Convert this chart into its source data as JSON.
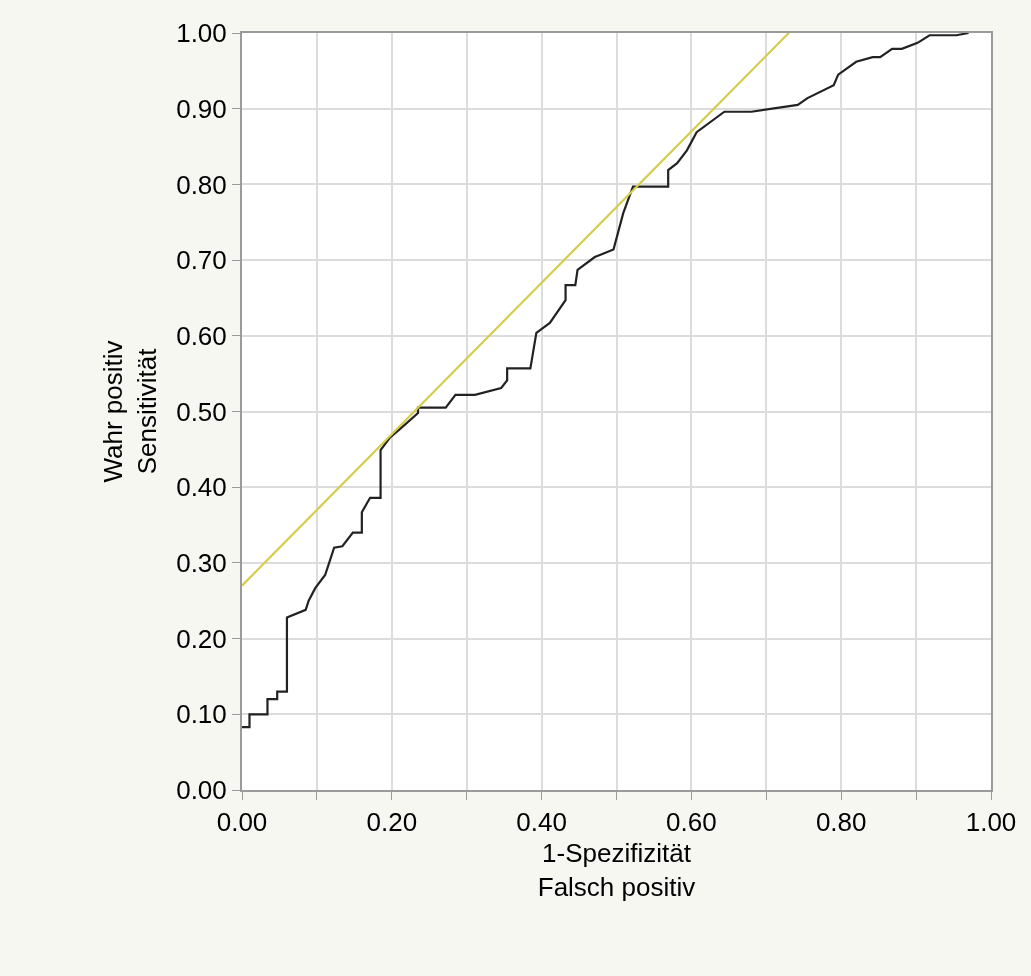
{
  "chart_data": {
    "type": "line",
    "xlabel": "1-Spezifizität\nFalsch positiv",
    "ylabel": "Wahr positiv\nSensitivität",
    "series": [
      {
        "color": "#222222",
        "x": [
          0.0,
          0.01,
          0.01,
          0.034,
          0.034,
          0.047,
          0.047,
          0.06,
          0.06,
          0.085,
          0.089,
          0.098,
          0.111,
          0.123,
          0.134,
          0.148,
          0.16,
          0.16,
          0.171,
          0.185,
          0.185,
          0.197,
          0.21,
          0.235,
          0.235,
          0.272,
          0.285,
          0.311,
          0.346,
          0.354,
          0.354,
          0.385,
          0.393,
          0.411,
          0.432,
          0.432,
          0.445,
          0.448,
          0.471,
          0.496,
          0.509,
          0.522,
          0.569,
          0.569,
          0.581,
          0.594,
          0.607,
          0.644,
          0.68,
          0.742,
          0.755,
          0.79,
          0.796,
          0.82,
          0.842,
          0.852,
          0.868,
          0.881,
          0.902,
          0.918,
          0.954,
          0.97
        ],
        "values": [
          0.083,
          0.083,
          0.1,
          0.1,
          0.12,
          0.12,
          0.13,
          0.13,
          0.228,
          0.238,
          0.25,
          0.267,
          0.284,
          0.32,
          0.322,
          0.34,
          0.34,
          0.367,
          0.386,
          0.386,
          0.449,
          0.465,
          0.476,
          0.498,
          0.505,
          0.505,
          0.522,
          0.522,
          0.531,
          0.541,
          0.557,
          0.557,
          0.604,
          0.617,
          0.647,
          0.667,
          0.667,
          0.687,
          0.704,
          0.714,
          0.762,
          0.797,
          0.797,
          0.819,
          0.828,
          0.845,
          0.869,
          0.896,
          0.896,
          0.905,
          0.914,
          0.931,
          0.945,
          0.962,
          0.968,
          0.968,
          0.979,
          0.979,
          0.987,
          0.997,
          0.997,
          1.0
        ]
      },
      {
        "color": "#d4cc4a",
        "x": [
          0.0,
          0.73
        ],
        "values": [
          0.27,
          1.0
        ]
      }
    ],
    "xlim": [
      0,
      1
    ],
    "ylim": [
      0,
      1
    ],
    "xticks": [
      {
        "value": 0,
        "label": "0.00"
      },
      {
        "value": 0.1,
        "label": null
      },
      {
        "value": 0.2,
        "label": "0.20"
      },
      {
        "value": 0.3,
        "label": null
      },
      {
        "value": 0.4,
        "label": "0.40"
      },
      {
        "value": 0.5,
        "label": null
      },
      {
        "value": 0.6,
        "label": "0.60"
      },
      {
        "value": 0.7,
        "label": null
      },
      {
        "value": 0.8,
        "label": "0.80"
      },
      {
        "value": 0.9,
        "label": null
      },
      {
        "value": 1,
        "label": "1.00"
      }
    ],
    "yticks": [
      {
        "value": 0,
        "label": "0.00"
      },
      {
        "value": 0.1,
        "label": "0.10"
      },
      {
        "value": 0.2,
        "label": "0.20"
      },
      {
        "value": 0.3,
        "label": "0.30"
      },
      {
        "value": 0.4,
        "label": "0.40"
      },
      {
        "value": 0.5,
        "label": "0.50"
      },
      {
        "value": 0.6,
        "label": "0.60"
      },
      {
        "value": 0.7,
        "label": "0.70"
      },
      {
        "value": 0.8,
        "label": "0.80"
      },
      {
        "value": 0.9,
        "label": "0.90"
      },
      {
        "value": 1,
        "label": "1.00"
      }
    ],
    "grid": true,
    "marker": "none",
    "line_style": "solid"
  }
}
